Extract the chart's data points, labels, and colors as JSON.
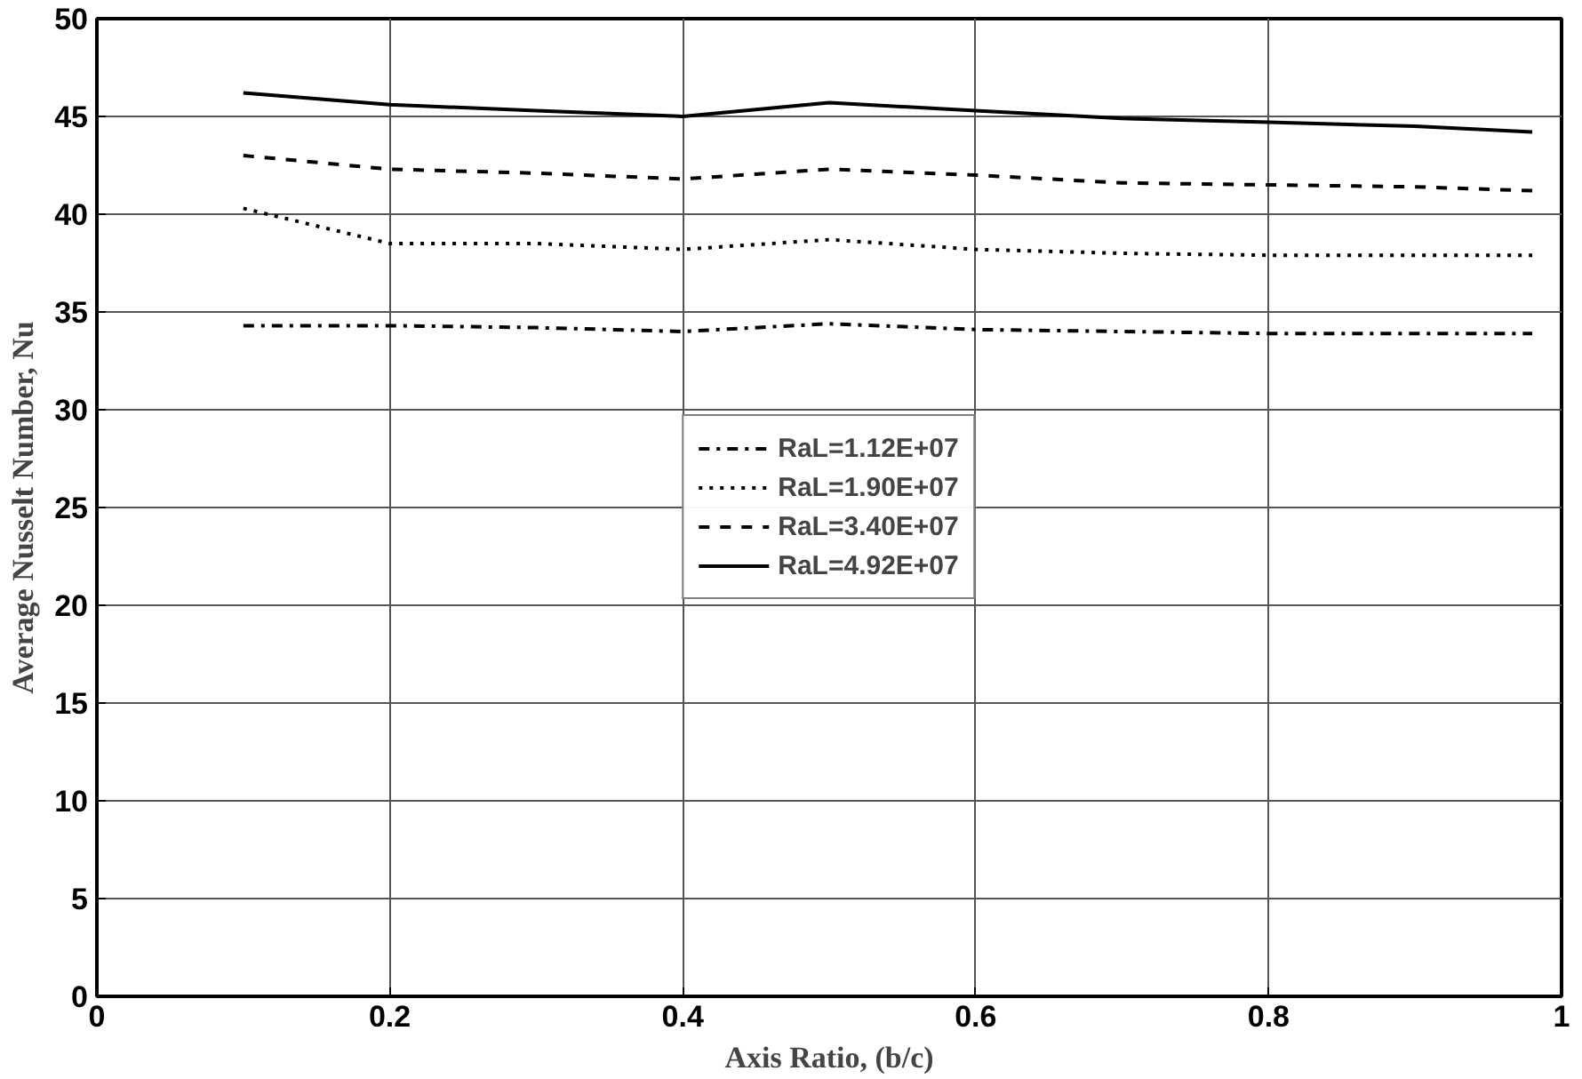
{
  "chart_data": {
    "type": "line",
    "xlabel": "Axis Ratio, (b/c)",
    "ylabel": "Average Nusselt Number, Nu",
    "x": [
      0.1,
      0.2,
      0.3,
      0.4,
      0.5,
      0.6,
      0.7,
      0.8,
      0.9,
      0.98
    ],
    "series": [
      {
        "name": "RaL=1.12E+07",
        "color": "#000000",
        "line_style": "dashdot",
        "values": [
          34.3,
          34.3,
          34.2,
          34.0,
          34.4,
          34.1,
          34.0,
          33.9,
          33.9,
          33.9
        ]
      },
      {
        "name": "RaL=1.90E+07",
        "color": "#000000",
        "line_style": "dotted",
        "values": [
          40.3,
          38.5,
          38.5,
          38.2,
          38.7,
          38.2,
          38.0,
          37.9,
          37.9,
          37.9
        ]
      },
      {
        "name": "RaL=3.40E+07",
        "color": "#000000",
        "line_style": "dashed",
        "values": [
          43.0,
          42.3,
          42.1,
          41.8,
          42.3,
          42.0,
          41.6,
          41.5,
          41.4,
          41.2
        ]
      },
      {
        "name": "RaL=4.92E+07",
        "color": "#000000",
        "line_style": "solid",
        "values": [
          46.2,
          45.6,
          45.3,
          45.0,
          45.7,
          45.3,
          44.9,
          44.7,
          44.5,
          44.2
        ]
      }
    ],
    "xlim": [
      0,
      1
    ],
    "xticks": [
      0,
      0.2,
      0.4,
      0.6,
      0.8,
      1
    ],
    "ylim": [
      0,
      50
    ],
    "yticks": [
      0,
      5,
      10,
      15,
      20,
      25,
      30,
      35,
      40,
      45,
      50
    ],
    "grid": true,
    "legend": "center",
    "marker": "none"
  }
}
